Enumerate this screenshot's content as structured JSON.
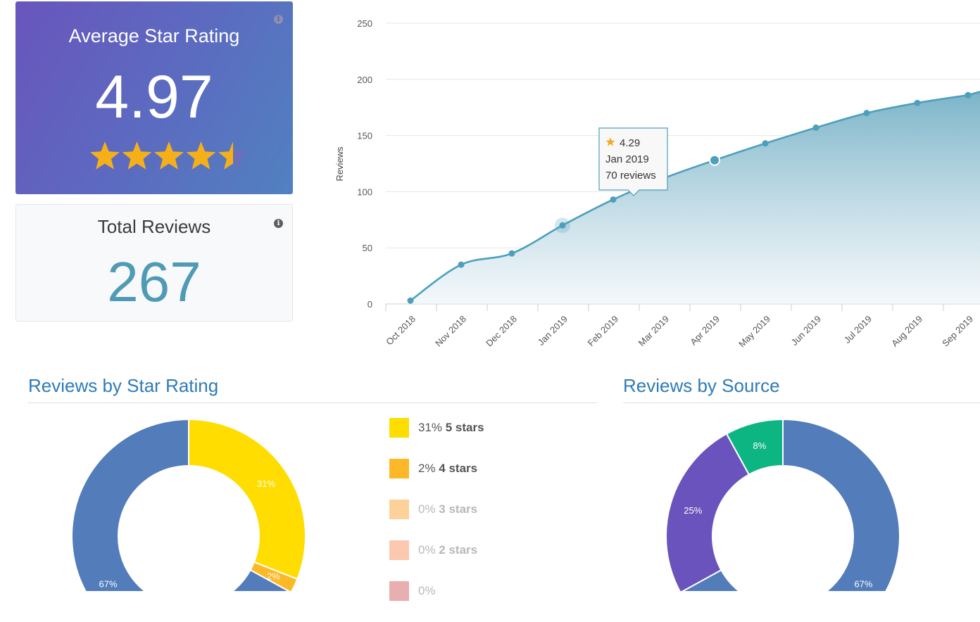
{
  "average_card": {
    "title": "Average Star Rating",
    "value": "4.97",
    "rating": 4.97,
    "star_color": "#f5b019"
  },
  "total_card": {
    "title": "Total Reviews",
    "value": "267"
  },
  "info_glyph": "i",
  "chart_data": [
    {
      "type": "area",
      "ylabel": "Reviews",
      "x": [
        "Oct 2018",
        "Nov 2018",
        "Dec 2018",
        "Jan 2019",
        "Feb 2019",
        "Mar 2019",
        "Apr 2019",
        "May 2019",
        "Jun 2019",
        "Jul 2019",
        "Aug 2019",
        "Sep 2019"
      ],
      "values": [
        3,
        35,
        45,
        70,
        93,
        112,
        128,
        143,
        157,
        170,
        179,
        186
      ],
      "ylim": [
        0,
        250
      ],
      "yticks": [
        "0",
        "50",
        "100",
        "150",
        "200",
        "250"
      ],
      "grid": true,
      "line_color": "#4d9fbb",
      "tooltip": {
        "rating": "4.29",
        "date": "Jan 2019",
        "reviews": "70 reviews"
      }
    },
    {
      "type": "pie",
      "title": "Reviews by Star Rating",
      "slices": [
        {
          "label": "31%",
          "value": 31,
          "color": "#ffdd00"
        },
        {
          "label": "2%",
          "value": 2,
          "color": "#fcb826"
        },
        {
          "label": "67%",
          "value": 67,
          "color": "#527cba"
        }
      ]
    },
    {
      "type": "pie",
      "title": "Reviews by Source",
      "slices": [
        {
          "label": "67%",
          "value": 67,
          "color": "#527cba"
        },
        {
          "label": "25%",
          "value": 25,
          "color": "#6a53bd"
        },
        {
          "label": "8%",
          "value": 8,
          "color": "#0db582"
        }
      ]
    }
  ],
  "star_legend": [
    {
      "pct": "31%",
      "label": "5 stars",
      "color": "#ffdd00",
      "dim": false
    },
    {
      "pct": "2%",
      "label": "4 stars",
      "color": "#fcb826",
      "dim": false
    },
    {
      "pct": "0%",
      "label": "3 stars",
      "color": "#fdd19a",
      "dim": true
    },
    {
      "pct": "0%",
      "label": "2 stars",
      "color": "#fdc8b0",
      "dim": true
    },
    {
      "pct": "0%",
      "label": "",
      "color": "#e8aeb0",
      "dim": true
    }
  ]
}
